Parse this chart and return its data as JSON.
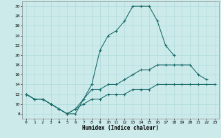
{
  "xlabel": "Humidex (Indice chaleur)",
  "x": [
    0,
    1,
    2,
    3,
    4,
    5,
    6,
    7,
    8,
    9,
    10,
    11,
    12,
    13,
    14,
    15,
    16,
    17,
    18,
    19,
    20,
    21,
    22,
    23
  ],
  "line1": [
    12,
    11,
    11,
    10,
    9,
    8,
    8,
    11,
    14,
    21,
    24,
    25,
    27,
    30,
    30,
    30,
    27,
    22,
    20,
    null,
    null,
    null,
    null,
    null
  ],
  "line2": [
    12,
    11,
    11,
    10,
    9,
    8,
    9,
    11,
    13,
    13,
    14,
    14,
    15,
    16,
    17,
    17,
    18,
    18,
    18,
    18,
    18,
    16,
    15,
    null
  ],
  "line3": [
    12,
    11,
    11,
    10,
    9,
    8,
    9,
    10,
    11,
    11,
    12,
    12,
    12,
    13,
    13,
    13,
    14,
    14,
    14,
    14,
    14,
    14,
    14,
    14
  ],
  "ylim": [
    7,
    31
  ],
  "xlim": [
    -0.5,
    23.5
  ],
  "yticks": [
    8,
    10,
    12,
    14,
    16,
    18,
    20,
    22,
    24,
    26,
    28,
    30
  ],
  "xticks": [
    0,
    1,
    2,
    3,
    4,
    5,
    6,
    7,
    8,
    9,
    10,
    11,
    12,
    13,
    14,
    15,
    16,
    17,
    18,
    19,
    20,
    21,
    22,
    23
  ],
  "line_color": "#1a6b6b",
  "bg_color": "#cceaea",
  "grid_color": "#a8d8d8"
}
